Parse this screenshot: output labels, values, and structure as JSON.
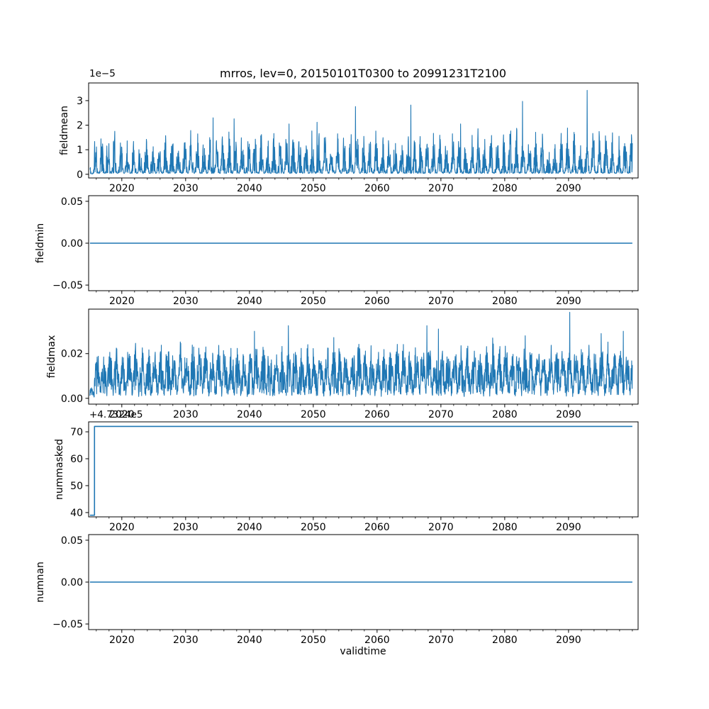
{
  "figure": {
    "title": "mrros, lev=0, 20150101T0300 to 20991231T2100",
    "xlabel": "validtime",
    "line_color": "#1f77b4",
    "text_color": "#000000",
    "spine_color": "#000000",
    "background": "#ffffff"
  },
  "chart_data": {
    "type": "line",
    "title": "mrros, lev=0, 20150101T0300 to 20991231T2100",
    "xlabel": "validtime",
    "x_axis_range": [
      2014.8,
      2100.9
    ],
    "x_data_range": [
      2015.0,
      2100.0
    ],
    "x_ticks": {
      "vals": [
        2020,
        2030,
        2040,
        2050,
        2060,
        2070,
        2080,
        2090
      ],
      "labels": [
        "2020",
        "2030",
        "2040",
        "2050",
        "2060",
        "2070",
        "2080",
        "2090"
      ],
      "minor_every": 2
    },
    "grid": false,
    "legend": false,
    "panels": [
      {
        "name": "fieldmean",
        "ylabel": "fieldmean",
        "offset_text": "1e−5",
        "ylim": [
          -1.5e-06,
          3.72e-05
        ],
        "ytick_vals": [
          0,
          1e-05,
          2e-05,
          3e-05
        ],
        "ytick_labels": [
          "0",
          "1",
          "2",
          "3"
        ],
        "series": {
          "kind": "noisy",
          "seed": 11,
          "n": 2400,
          "scale": 1e-05,
          "floor": 0.04,
          "amp": 1.62,
          "season_pow": 1.1,
          "u_pow": 1.35,
          "season_phase": 2014.6,
          "low_until": 2015.7,
          "low_factor": 0.35,
          "spikes": [
            [
              2034.3,
              2.3
            ],
            [
              2037.6,
              2.26
            ],
            [
              2046.2,
              2.05
            ],
            [
              2050.6,
              2.12
            ],
            [
              2056.6,
              2.76
            ],
            [
              2065.3,
              2.82
            ],
            [
              2073.1,
              2.05
            ],
            [
              2082.8,
              2.97
            ],
            [
              2092.9,
              3.42
            ]
          ]
        }
      },
      {
        "name": "fieldmin",
        "ylabel": "fieldmin",
        "offset_text": "",
        "ylim": [
          -0.0567,
          0.0567
        ],
        "ytick_vals": [
          -0.05,
          0,
          0.05
        ],
        "ytick_labels": [
          "−0.05",
          "0.00",
          "0.05"
        ],
        "series": {
          "kind": "constant",
          "value": 0
        }
      },
      {
        "name": "fieldmax",
        "ylabel": "fieldmax",
        "offset_text": "",
        "ylim": [
          -0.0026,
          0.0399
        ],
        "ytick_vals": [
          0,
          0.02
        ],
        "ytick_labels": [
          "0.00",
          "0.02"
        ],
        "series": {
          "kind": "noisy",
          "seed": 23,
          "n": 2400,
          "scale": 1,
          "floor": 0.0008,
          "amp": 0.021,
          "season_pow": 0.35,
          "u_pow": 0.6,
          "season_phase": 2014.9,
          "low_until": 2015.7,
          "low_factor": 0.25,
          "spikes": [
            [
              2040.8,
              0.03
            ],
            [
              2046.1,
              0.0325
            ],
            [
              2053.2,
              0.0272
            ],
            [
              2067.8,
              0.0325
            ],
            [
              2069.6,
              0.031
            ],
            [
              2078.1,
              0.027
            ],
            [
              2083.2,
              0.028
            ],
            [
              2090.2,
              0.0385
            ],
            [
              2095.1,
              0.029
            ],
            [
              2098.6,
              0.03
            ]
          ]
        }
      },
      {
        "name": "nummasked",
        "ylabel": "nummasked",
        "offset_text": "+4.7324e5",
        "ylim": [
          38.4,
          73.7
        ],
        "ytick_vals": [
          40,
          50,
          60,
          70
        ],
        "ytick_labels": [
          "40",
          "50",
          "60",
          "70"
        ],
        "series": {
          "kind": "step",
          "low": 39,
          "high": 72,
          "step_at": 2015.72
        }
      },
      {
        "name": "numnan",
        "ylabel": "numnan",
        "offset_text": "",
        "ylim": [
          -0.0567,
          0.0567
        ],
        "ytick_vals": [
          -0.05,
          0,
          0.05
        ],
        "ytick_labels": [
          "−0.05",
          "0.00",
          "0.05"
        ],
        "series": {
          "kind": "constant",
          "value": 0
        }
      }
    ]
  }
}
